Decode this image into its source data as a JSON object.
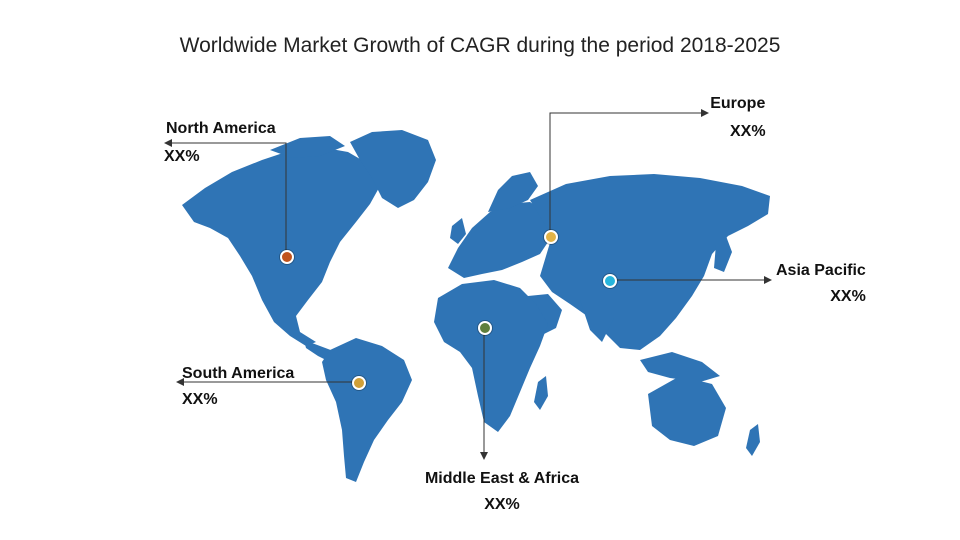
{
  "title": "Worldwide Market Growth of CAGR during the period 2018-2025",
  "colors": {
    "land": "#2f74b5",
    "line": "#333333",
    "marker_north_america": "#c0531c",
    "marker_europe": "#e2b347",
    "marker_asia_pacific": "#27b5dc",
    "marker_mea": "#5f7f3d",
    "marker_south_america": "#d1a038"
  },
  "regions": {
    "north_america": {
      "name": "North America",
      "value": "XX%"
    },
    "europe": {
      "name": "Europe",
      "value": "XX%"
    },
    "asia_pacific": {
      "name": "Asia Pacific",
      "value": "XX%"
    },
    "south_america": {
      "name": "South America",
      "value": "XX%"
    },
    "mea": {
      "name": "Middle East & Africa",
      "value": "XX%"
    }
  }
}
